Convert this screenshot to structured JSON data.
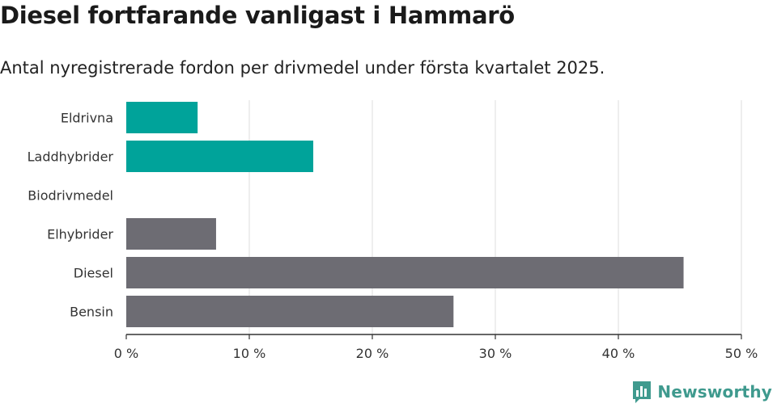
{
  "title": "Diesel fortfarande vanligast i Hammarö",
  "subtitle": "Antal nyregistrerade fordon per drivmedel under första kvartalet 2025.",
  "brand": {
    "name": "Newsworthy",
    "icon": "newsworthy-logo-icon",
    "color": "#3f9a8e"
  },
  "chart_data": {
    "type": "bar",
    "orientation": "horizontal",
    "categories": [
      "Eldrivna",
      "Laddhybrider",
      "Biodrivmedel",
      "Elhybrider",
      "Diesel",
      "Bensin"
    ],
    "values": [
      5.8,
      15.2,
      0,
      7.3,
      45.3,
      26.6
    ],
    "colors": [
      "#00a39a",
      "#00a39a",
      "#00a39a",
      "#6d6c73",
      "#6d6c73",
      "#6d6c73"
    ],
    "xlim": [
      0,
      50
    ],
    "xticks": [
      0,
      10,
      20,
      30,
      40,
      50
    ],
    "tick_suffix": " %",
    "grid": true,
    "legend": "none"
  }
}
